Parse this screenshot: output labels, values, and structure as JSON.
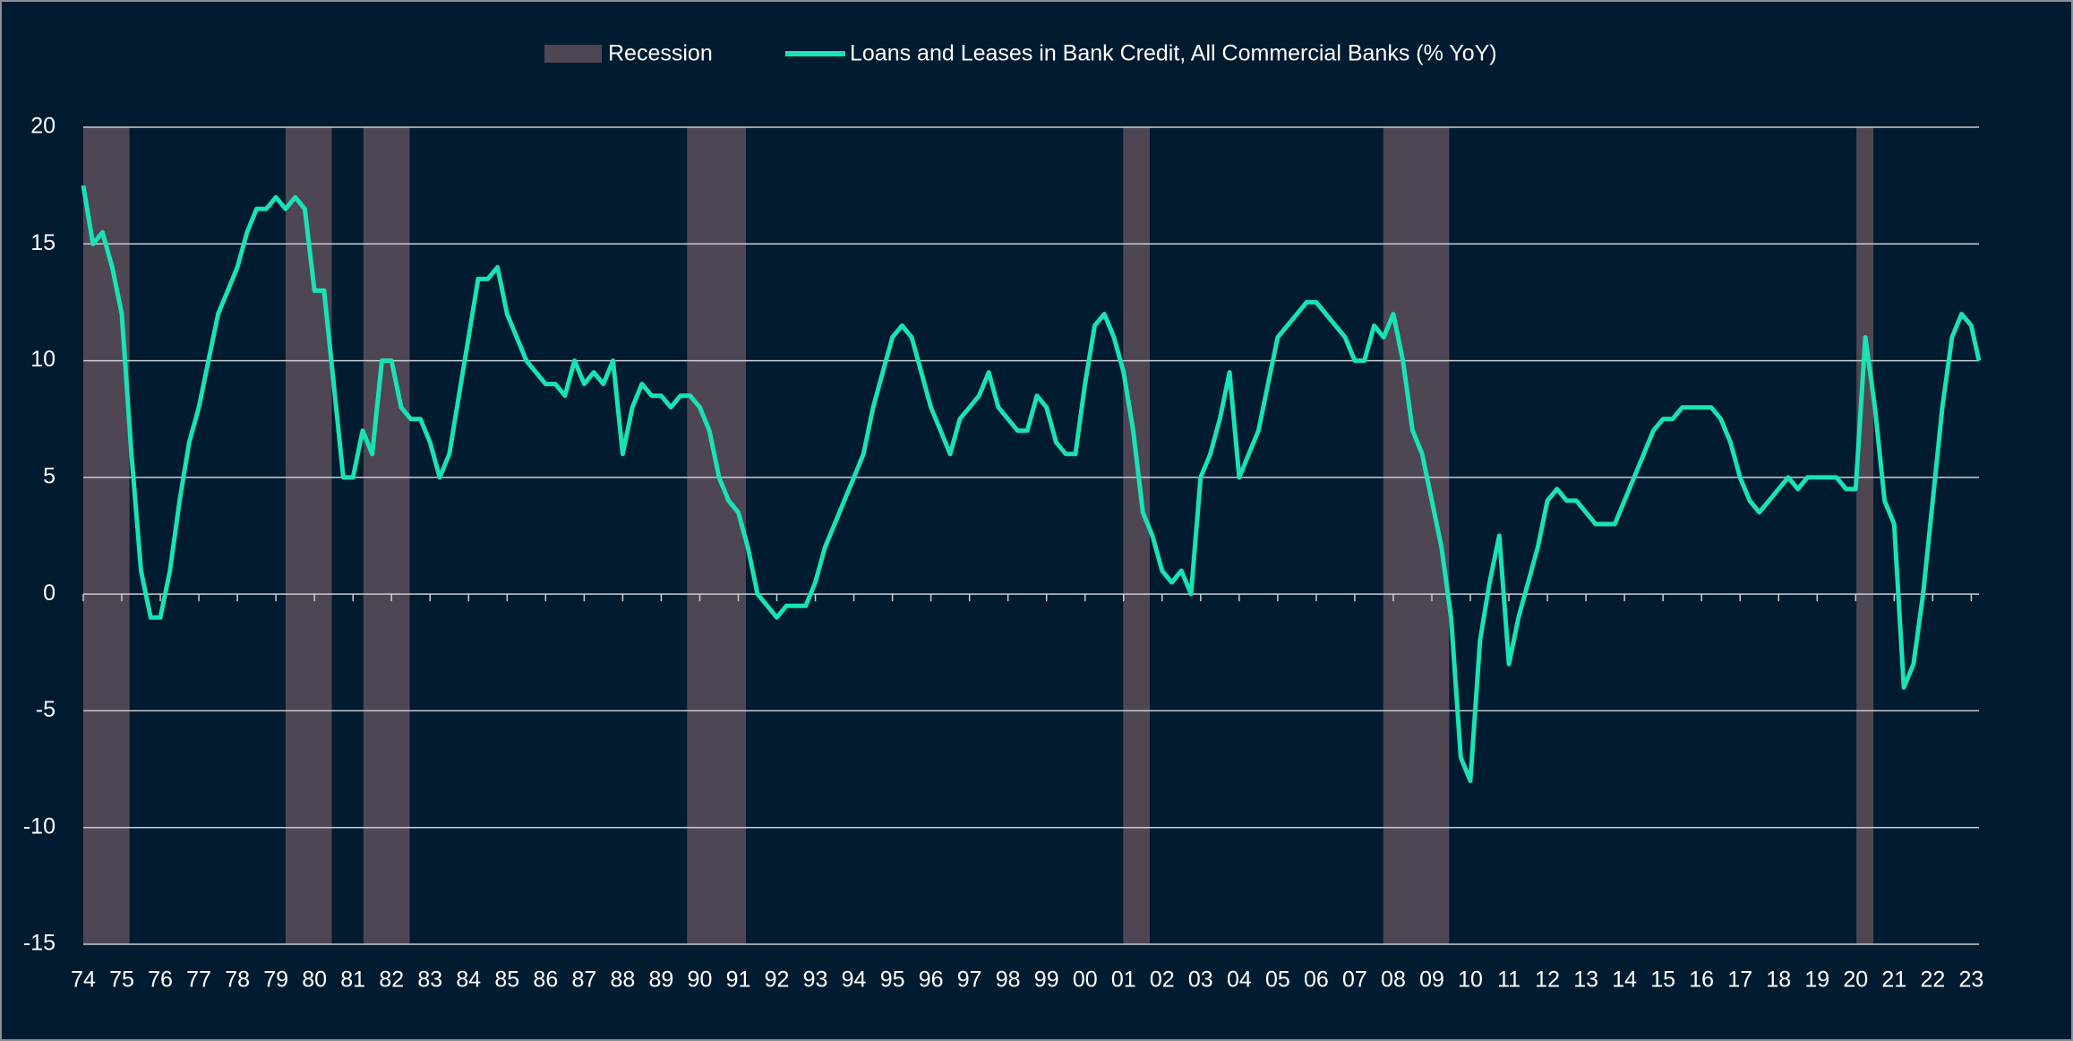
{
  "chart_data": {
    "type": "line",
    "series": [
      {
        "name": "Loans and Leases in Bank Credit, All Commercial Banks (% YoY)",
        "color": "#19e3b5",
        "values": [
          17.5,
          15,
          15.5,
          14,
          12,
          6,
          1,
          -1,
          -1,
          1,
          4,
          6.5,
          8,
          10,
          12,
          13,
          14,
          15.5,
          16.5,
          16.5,
          17,
          16.5,
          17,
          16.5,
          13,
          13,
          9,
          5,
          5,
          7,
          6,
          10,
          10,
          8,
          7.5,
          7.5,
          6.5,
          5,
          6,
          8.5,
          11,
          13.5,
          13.5,
          14,
          12,
          11,
          10,
          9.5,
          9,
          9,
          8.5,
          10,
          9,
          9.5,
          9,
          10,
          6,
          8,
          9,
          8.5,
          8.5,
          8,
          8.5,
          8.5,
          8,
          7,
          5,
          4,
          3.5,
          2,
          0,
          -0.5,
          -1,
          -0.5,
          -0.5,
          -0.5,
          0.5,
          2,
          3,
          4,
          5,
          6,
          8,
          9.5,
          11,
          11.5,
          11,
          9.5,
          8,
          7,
          6,
          7.5,
          8,
          8.5,
          9.5,
          8,
          7.5,
          7,
          7,
          8.5,
          8,
          6.5,
          6,
          6,
          9,
          11.5,
          12,
          11,
          9.5,
          7,
          3.5,
          2.5,
          1,
          0.5,
          1,
          0,
          5,
          6,
          7.5,
          9.5,
          5,
          6,
          7,
          9,
          11,
          11.5,
          12,
          12.5,
          12.5,
          12,
          11.5,
          11,
          10,
          10,
          11.5,
          11,
          12,
          10,
          7,
          6,
          4,
          2,
          -1,
          -7,
          -8,
          -2,
          0.5,
          2.5,
          -3,
          -1,
          0.5,
          2,
          4,
          4.5,
          4,
          4,
          3.5,
          3,
          3,
          3,
          4,
          5,
          6,
          7,
          7.5,
          7.5,
          8,
          8,
          8,
          8,
          7.5,
          6.5,
          5,
          4,
          3.5,
          4,
          4.5,
          5,
          4.5,
          5,
          5,
          5,
          5,
          4.5,
          4.5,
          11,
          8,
          4,
          3,
          -4,
          -3,
          0,
          4,
          8,
          11,
          12,
          11.5,
          10
        ]
      }
    ],
    "x": [
      1974,
      1974.25,
      1974.5,
      1974.75,
      1975,
      1975.25,
      1975.5,
      1975.75,
      1976,
      1976.25,
      1976.5,
      1976.75,
      1977,
      1977.25,
      1977.5,
      1977.75,
      1978,
      1978.25,
      1978.5,
      1978.75,
      1979,
      1979.25,
      1979.5,
      1979.75,
      1980,
      1980.25,
      1980.5,
      1980.75,
      1981,
      1981.25,
      1981.5,
      1981.75,
      1982,
      1982.25,
      1982.5,
      1982.75,
      1983,
      1983.25,
      1983.5,
      1983.75,
      1984,
      1984.25,
      1984.5,
      1984.75,
      1985,
      1985.25,
      1985.5,
      1985.75,
      1986,
      1986.25,
      1986.5,
      1986.75,
      1987,
      1987.25,
      1987.5,
      1987.75,
      1988,
      1988.25,
      1988.5,
      1988.75,
      1989,
      1989.25,
      1989.5,
      1989.75,
      1990,
      1990.25,
      1990.5,
      1990.75,
      1991,
      1991.25,
      1991.5,
      1991.75,
      1992,
      1992.25,
      1992.5,
      1992.75,
      1993,
      1993.25,
      1993.5,
      1993.75,
      1994,
      1994.25,
      1994.5,
      1994.75,
      1995,
      1995.25,
      1995.5,
      1995.75,
      1996,
      1996.25,
      1996.5,
      1996.75,
      1997,
      1997.25,
      1997.5,
      1997.75,
      1998,
      1998.25,
      1998.5,
      1998.75,
      1999,
      1999.25,
      1999.5,
      1999.75,
      2000,
      2000.25,
      2000.5,
      2000.75,
      2001,
      2001.25,
      2001.5,
      2001.75,
      2002,
      2002.25,
      2002.5,
      2002.75,
      2003,
      2003.25,
      2003.5,
      2003.75,
      2004,
      2004.25,
      2004.5,
      2004.75,
      2005,
      2005.25,
      2005.5,
      2005.75,
      2006,
      2006.25,
      2006.5,
      2006.75,
      2007,
      2007.25,
      2007.5,
      2007.75,
      2008,
      2008.25,
      2008.5,
      2008.75,
      2009,
      2009.25,
      2009.5,
      2009.75,
      2010,
      2010.25,
      2010.5,
      2010.75,
      2011,
      2011.25,
      2011.5,
      2011.75,
      2012,
      2012.25,
      2012.5,
      2012.75,
      2013,
      2013.25,
      2013.5,
      2013.75,
      2014,
      2014.25,
      2014.5,
      2014.75,
      2015,
      2015.25,
      2015.5,
      2015.75,
      2016,
      2016.25,
      2016.5,
      2016.75,
      2017,
      2017.25,
      2017.5,
      2017.75,
      2018,
      2018.25,
      2018.5,
      2018.75,
      2019,
      2019.25,
      2019.5,
      2019.75,
      2020,
      2020.25,
      2020.5,
      2020.75,
      2021,
      2021.25,
      2021.5,
      2021.75,
      2022,
      2022.25,
      2022.5,
      2022.75,
      2023,
      2023.2
    ],
    "recession_name": "Recession",
    "recession_color": "#4f4654",
    "recessions": [
      [
        1974.0,
        1975.2
      ],
      [
        1979.25,
        1980.45
      ],
      [
        1981.27,
        1982.47
      ],
      [
        1989.67,
        1991.2
      ],
      [
        2000.99,
        2001.68
      ],
      [
        2007.74,
        2009.45
      ],
      [
        2020.02,
        2020.46
      ]
    ],
    "xlim": [
      1974,
      2023.2
    ],
    "ylim": [
      -15,
      20
    ],
    "yticks": [
      -15,
      -10,
      -5,
      0,
      5,
      10,
      15,
      20
    ],
    "grid": true,
    "xticks": [
      {
        "value": 1974,
        "label": "74"
      },
      {
        "value": 1975,
        "label": "75"
      },
      {
        "value": 1976,
        "label": "76"
      },
      {
        "value": 1977,
        "label": "77"
      },
      {
        "value": 1978,
        "label": "78"
      },
      {
        "value": 1979,
        "label": "79"
      },
      {
        "value": 1980,
        "label": "80"
      },
      {
        "value": 1981,
        "label": "81"
      },
      {
        "value": 1982,
        "label": "82"
      },
      {
        "value": 1983,
        "label": "83"
      },
      {
        "value": 1984,
        "label": "84"
      },
      {
        "value": 1985,
        "label": "85"
      },
      {
        "value": 1986,
        "label": "86"
      },
      {
        "value": 1987,
        "label": "87"
      },
      {
        "value": 1988,
        "label": "88"
      },
      {
        "value": 1989,
        "label": "89"
      },
      {
        "value": 1990,
        "label": "90"
      },
      {
        "value": 1991,
        "label": "91"
      },
      {
        "value": 1992,
        "label": "92"
      },
      {
        "value": 1993,
        "label": "93"
      },
      {
        "value": 1994,
        "label": "94"
      },
      {
        "value": 1995,
        "label": "95"
      },
      {
        "value": 1996,
        "label": "96"
      },
      {
        "value": 1997,
        "label": "97"
      },
      {
        "value": 1998,
        "label": "98"
      },
      {
        "value": 1999,
        "label": "99"
      },
      {
        "value": 2000,
        "label": "00"
      },
      {
        "value": 2001,
        "label": "01"
      },
      {
        "value": 2002,
        "label": "02"
      },
      {
        "value": 2003,
        "label": "03"
      },
      {
        "value": 2004,
        "label": "04"
      },
      {
        "value": 2005,
        "label": "05"
      },
      {
        "value": 2006,
        "label": "06"
      },
      {
        "value": 2007,
        "label": "07"
      },
      {
        "value": 2008,
        "label": "08"
      },
      {
        "value": 2009,
        "label": "09"
      },
      {
        "value": 2010,
        "label": "10"
      },
      {
        "value": 2011,
        "label": "11"
      },
      {
        "value": 2012,
        "label": "12"
      },
      {
        "value": 2013,
        "label": "13"
      },
      {
        "value": 2014,
        "label": "14"
      },
      {
        "value": 2015,
        "label": "15"
      },
      {
        "value": 2016,
        "label": "16"
      },
      {
        "value": 2017,
        "label": "17"
      },
      {
        "value": 2018,
        "label": "18"
      },
      {
        "value": 2019,
        "label": "19"
      },
      {
        "value": 2020,
        "label": "20"
      },
      {
        "value": 2021,
        "label": "21"
      },
      {
        "value": 2022,
        "label": "22"
      },
      {
        "value": 2023,
        "label": "23"
      }
    ]
  }
}
